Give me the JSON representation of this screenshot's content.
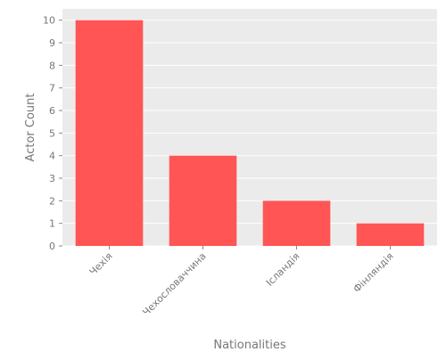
{
  "chart_data": {
    "type": "bar",
    "categories": [
      "Чехія",
      "Чехословаччина",
      "Ісландія",
      "Фінляндія"
    ],
    "values": [
      10,
      4,
      2,
      1
    ],
    "title": "",
    "xlabel": "Nationalities",
    "ylabel": "Actor Count",
    "ylim": [
      0,
      10.5
    ],
    "yticks": [
      0,
      1,
      2,
      3,
      4,
      5,
      6,
      7,
      8,
      9,
      10
    ],
    "grid": true,
    "bar_color": "#ff5555",
    "background_color": "#ebebeb",
    "grid_color": "#ffffff",
    "text_color": "#777777"
  }
}
